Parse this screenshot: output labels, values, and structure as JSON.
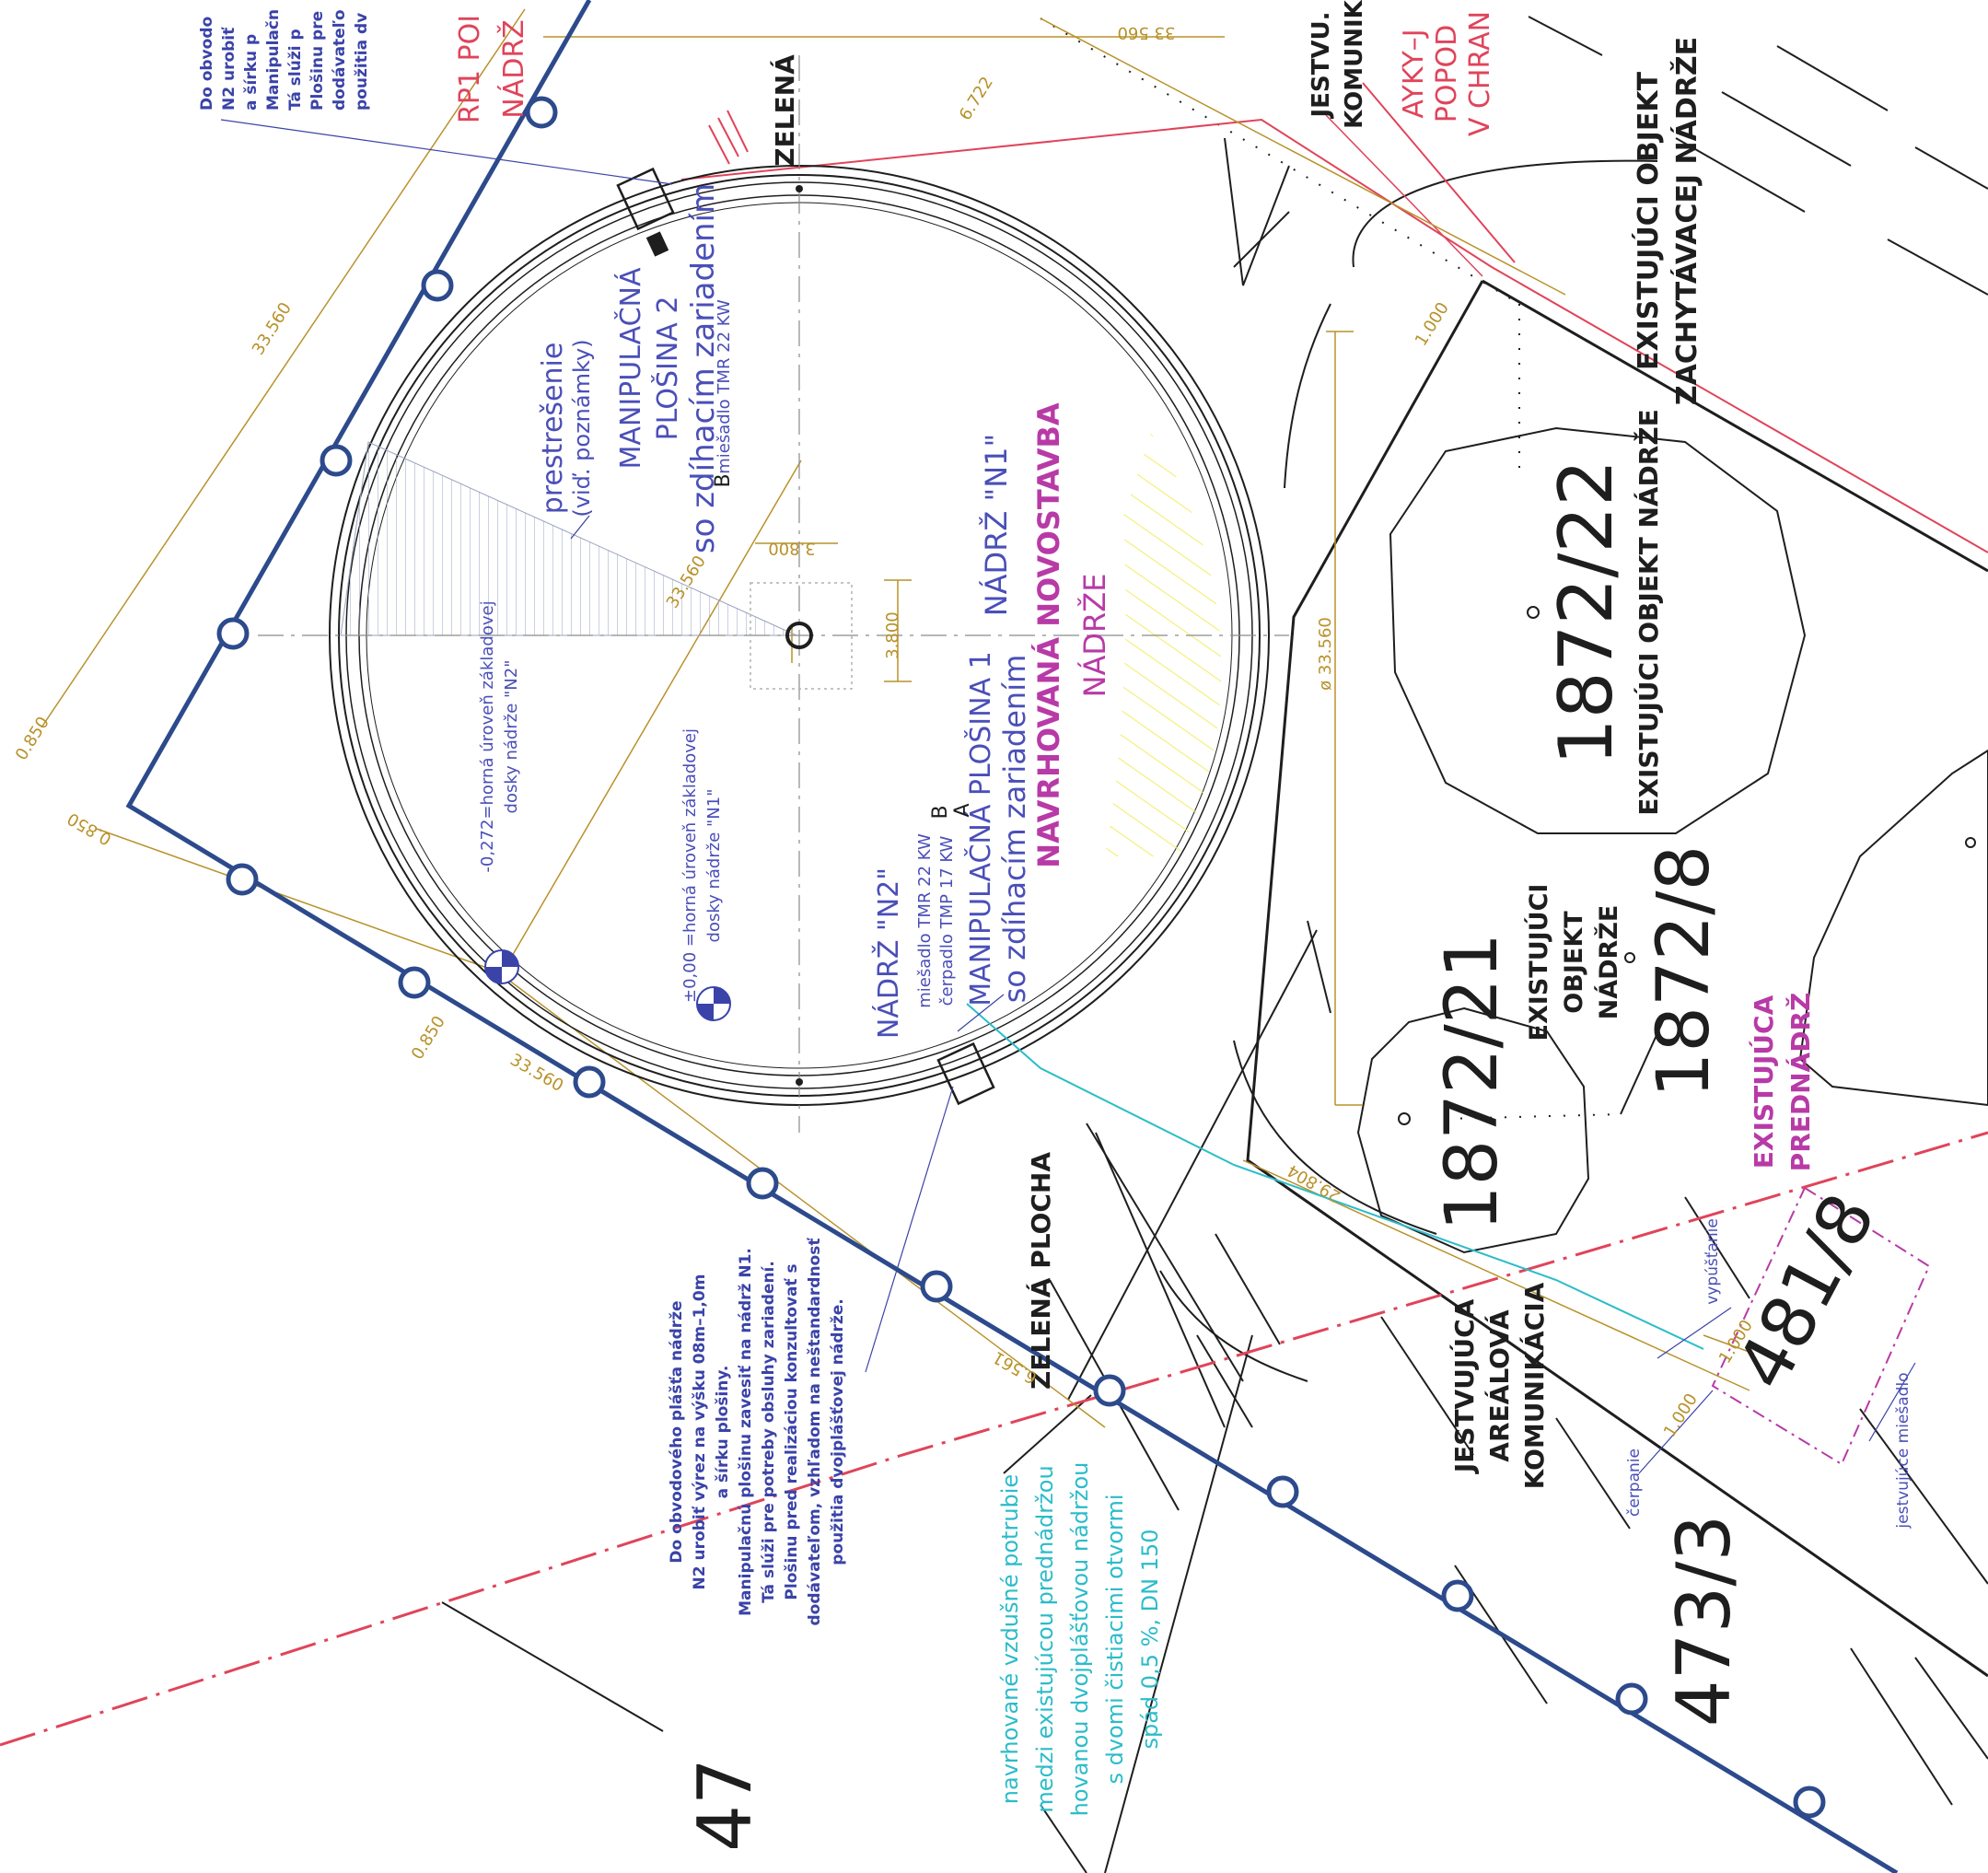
{
  "colors": {
    "linework": "#1e1e1e",
    "fence": "#2c4a8c",
    "dimension": "#b8922a",
    "note_blue": "#3a43a8",
    "pipe": "#2bbcc9",
    "magenta": "#b83aa6",
    "red": "#e0445a",
    "hatch_yellow": "#f2ee62",
    "hatch_grey": "#9aa3c0"
  },
  "labels": {
    "zelena_top": "ZELENÁ",
    "zelena_plocha": "ZELENÁ PLOCHA",
    "jestvujuca_kom": [
      "JESTVUJÚCA",
      "AREÁLOVÁ",
      "KOMUNIKÁCIA"
    ],
    "jestvu_top": [
      "JESTVU.",
      "KOMUNIK"
    ],
    "rp1": [
      "RP1 POI",
      "NÁDRŽ"
    ],
    "ayky": [
      "AYKY–J",
      "POPOD",
      "V CHRAN"
    ],
    "existujuci_zachyt": [
      "EXISTUJÚCI OBJEKT",
      "ZACHYTÁVACEJ NÁDRŽE"
    ],
    "parcel_1872_22": "1872/22",
    "existujuci_nadrze_1872_22": "EXISTUJÚCI OBJEKT NÁDRŽE",
    "parcel_1872_8": "1872/8",
    "parcel_1872_21": "1872/21",
    "existujuci_objekt_nadrze": [
      "EXISTUJÚCI",
      "OBJEKT",
      "NÁDRŽE"
    ],
    "existujuca_prednadrz": [
      "EXISTUJÚCA",
      "PREDNÁDRŽ"
    ],
    "parcel_481_8": "481/8",
    "parcel_473_3": "473/3",
    "parcel_47": "47",
    "navrhovana": [
      "NAVRHOVANÁ NOVOSTAVBA",
      "NÁDRŽE"
    ],
    "nadrz_n1": "NÁDRŽ \"N1\"",
    "nadrz_n2": "NÁDRŽ \"N2\"",
    "plosina2": [
      "MANIPULAČNÁ",
      "PLOŠINA 2",
      "so zdíhacím zariadením"
    ],
    "miesadlo_b_top": "miešadlo TMR 22 KW",
    "letter_b": "B",
    "letter_a": "A",
    "prestresenie": [
      "prestrešenie",
      "(viď. poznámky)"
    ],
    "plosina1": [
      "MANIPULAČNÁ PLOŠINA 1",
      "so zdíhacím zariadením"
    ],
    "n2_equip": [
      "miešadlo TMR 22 KW",
      "čerpadlo TMP 17 KW"
    ],
    "level_000": [
      "±0,00 =horná úroveň základovej",
      "dosky nádrže \"N1\""
    ],
    "level_0272": [
      "-0,272=horná úroveň základovej",
      "dosky nádrže \"N2\""
    ],
    "vypustanie": "vypúšťanie",
    "cerpanie": "čerpanie",
    "jestvujuce_miesadlo": "jestvujúce miešadlo",
    "note_bottom": [
      "Do obvodového plášťa nádrže",
      "N2 urobiť výrez na výšku 08m–1,0m",
      "a šírku plošiny.",
      "Manipulačnú plošinu zavesiť na nádrž N1.",
      "Tá slúži pre potreby obsluhy zariadení.",
      "Plošinu pred realizáciou konzultovať s",
      "dodávateľom, vzhľadom na neštandardnosť",
      "použitia dvojplášťovej nádrže."
    ],
    "note_top": [
      "Do obvodo",
      "N2 urobiť",
      "a šírku p",
      "Manipulačn",
      "Tá slúži p",
      "Plošinu pre",
      "dodávateľo",
      "použitia dv"
    ],
    "pipe_note": [
      "navrhované vzdušné potrubie",
      "medzi existujúcou prednádržou",
      "hovanou dvojplášťovou nádržou",
      "s dvomi čistiacimi otvormi",
      "spád 0,5 %, DN 150"
    ]
  },
  "dimensions": {
    "d_33560_a": "33.560",
    "d_33560_b": "33.560",
    "d_33560_c": "33.560",
    "d_33560_d": "33 560",
    "d_6722": "6.722",
    "d_1000_a": "1.000",
    "d_1000_b": "1.000",
    "d_1000_c": "1.000",
    "d_0850_a": "0.850",
    "d_0850_b": "0.850",
    "d_0850_c": "0.850",
    "d_3800_a": "3.800",
    "d_3800_b": "3.800",
    "d_diam": "ø 33.560",
    "d_29804": "29.804",
    "d_6561": "6.561"
  }
}
